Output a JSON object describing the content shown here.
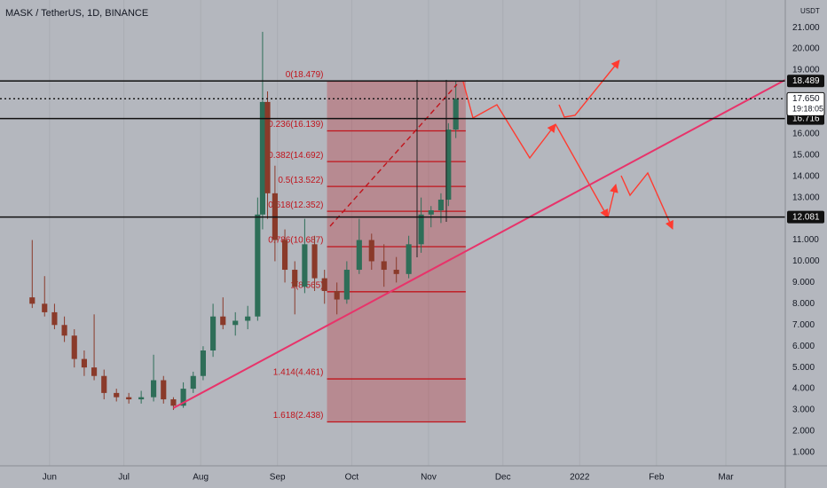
{
  "chart_data": {
    "type": "candlestick",
    "title": "MASK / TetherUS, 1D, BINANCE",
    "currency": "USDT",
    "x": [
      -7,
      -2,
      2,
      6,
      10,
      14,
      18,
      22,
      27,
      32,
      37,
      42,
      46,
      50,
      54,
      58,
      62,
      66,
      70,
      75,
      80,
      84,
      86,
      88,
      91,
      95,
      99,
      103,
      107,
      111,
      116,
      120,
      125,
      130,
      135,
      140,
      145,
      150,
      154,
      158,
      161,
      164
    ],
    "open": [
      8.3,
      8.0,
      7.6,
      7.0,
      6.5,
      5.4,
      5.0,
      4.6,
      3.8,
      3.6,
      3.5,
      3.6,
      4.4,
      3.5,
      3.2,
      4.0,
      4.6,
      5.8,
      7.4,
      7.0,
      7.2,
      7.4,
      12.2,
      17.5,
      13.2,
      11.0,
      9.6,
      8.8,
      10.8,
      9.2,
      8.6,
      8.2,
      9.6,
      11.0,
      10.0,
      9.6,
      9.4,
      10.8,
      12.2,
      12.4,
      12.9,
      16.2
    ],
    "high": [
      11.0,
      9.3,
      8.0,
      7.4,
      6.8,
      5.8,
      7.5,
      4.9,
      4.0,
      3.8,
      3.9,
      5.6,
      4.6,
      3.6,
      4.3,
      4.8,
      6.0,
      8.0,
      8.3,
      7.6,
      7.9,
      13.0,
      20.8,
      18.0,
      14.5,
      11.5,
      10.0,
      12.0,
      11.2,
      9.6,
      9.0,
      10.0,
      12.0,
      11.3,
      10.8,
      10.2,
      11.2,
      13.0,
      12.6,
      13.2,
      16.5,
      18.5
    ],
    "low": [
      7.8,
      7.4,
      6.8,
      6.2,
      5.0,
      4.6,
      4.4,
      3.5,
      3.4,
      3.3,
      3.3,
      3.4,
      3.3,
      3.0,
      3.1,
      3.8,
      4.4,
      5.5,
      6.8,
      6.5,
      6.8,
      7.2,
      11.5,
      12.0,
      10.0,
      9.0,
      7.5,
      8.5,
      8.6,
      8.0,
      7.5,
      8.0,
      9.4,
      9.6,
      8.8,
      9.0,
      9.2,
      10.4,
      11.6,
      11.8,
      12.6,
      15.8
    ],
    "close": [
      8.0,
      7.6,
      7.0,
      6.5,
      5.4,
      5.0,
      4.6,
      3.8,
      3.6,
      3.5,
      3.6,
      4.4,
      3.5,
      3.2,
      4.0,
      4.6,
      5.8,
      7.4,
      7.0,
      7.2,
      7.4,
      12.2,
      17.5,
      13.2,
      11.0,
      9.6,
      8.8,
      10.8,
      9.2,
      8.6,
      8.2,
      9.6,
      11.0,
      10.0,
      9.6,
      9.4,
      10.8,
      12.2,
      12.4,
      12.9,
      16.2,
      17.65
    ],
    "up_color": "#2e6e58",
    "down_color": "#8a3a2a",
    "xlim": [
      -20,
      297
    ],
    "ylim": [
      0.37,
      22.3
    ],
    "xticks": [
      {
        "value": 0,
        "label": "Jun"
      },
      {
        "value": 30,
        "label": "Jul"
      },
      {
        "value": 61,
        "label": "Aug"
      },
      {
        "value": 92,
        "label": "Sep"
      },
      {
        "value": 122,
        "label": "Oct"
      },
      {
        "value": 153,
        "label": "Nov"
      },
      {
        "value": 183,
        "label": "Dec"
      },
      {
        "value": 214,
        "label": "2022"
      },
      {
        "value": 245,
        "label": "Feb"
      },
      {
        "value": 273,
        "label": "Mar"
      }
    ],
    "yticks": [
      {
        "value": 1,
        "label": "1.000"
      },
      {
        "value": 2,
        "label": "2.000"
      },
      {
        "value": 3,
        "label": "3.000"
      },
      {
        "value": 4,
        "label": "4.000"
      },
      {
        "value": 5,
        "label": "5.000"
      },
      {
        "value": 6,
        "label": "6.000"
      },
      {
        "value": 7,
        "label": "7.000"
      },
      {
        "value": 8,
        "label": "8.000"
      },
      {
        "value": 9,
        "label": "9.000"
      },
      {
        "value": 10,
        "label": "10.000"
      },
      {
        "value": 11,
        "label": "11.000"
      },
      {
        "value": 12,
        "label": "12.000"
      },
      {
        "value": 13,
        "label": "13.000"
      },
      {
        "value": 14,
        "label": "14.000"
      },
      {
        "value": 15,
        "label": "15.000"
      },
      {
        "value": 16,
        "label": "16.000"
      },
      {
        "value": 19,
        "label": "19.000"
      },
      {
        "value": 20,
        "label": "20.000"
      },
      {
        "value": 21,
        "label": "21.000"
      }
    ],
    "price_levels": [
      {
        "value": 18.489,
        "label": "18.489"
      },
      {
        "value": 16.716,
        "label": "16.716"
      },
      {
        "value": 12.081,
        "label": "12.081"
      }
    ],
    "last_price": {
      "value": 17.65,
      "label": "17.650",
      "countdown": "19:18:05"
    },
    "fib": {
      "x": [
        112,
        168
      ],
      "color": "#c0141c",
      "levels": [
        {
          "value": 18.479,
          "label": "0(18.479)"
        },
        {
          "value": 16.139,
          "label": "0.236(16.139)"
        },
        {
          "value": 14.692,
          "label": "0.382(14.692)"
        },
        {
          "value": 13.522,
          "label": "0.5(13.522)"
        },
        {
          "value": 12.352,
          "label": "0.618(12.352)"
        },
        {
          "value": 10.687,
          "label": "0.786(10.687)"
        },
        {
          "value": 8.565,
          "label": "1(8.565)"
        },
        {
          "value": 4.461,
          "label": "1.414(4.461)"
        },
        {
          "value": 2.438,
          "label": "1.618(2.438)"
        }
      ]
    },
    "trendline": {
      "x": [
        50,
        297
      ],
      "y": [
        3.09,
        18.54
      ],
      "color": "#e8336a"
    }
  }
}
